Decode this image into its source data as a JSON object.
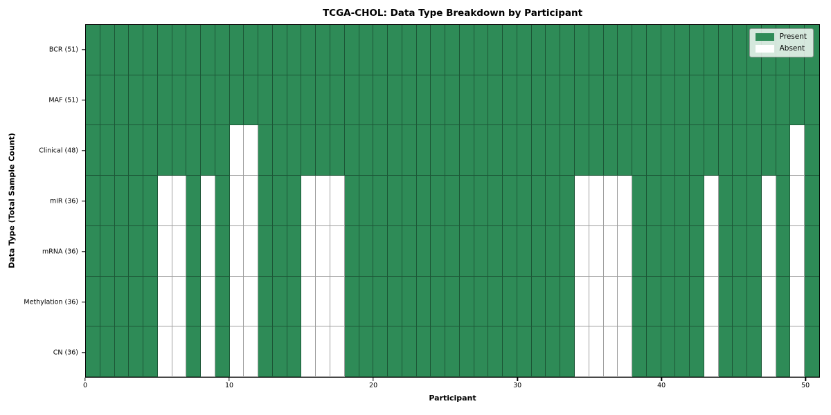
{
  "chart_data": {
    "type": "heatmap",
    "title": "TCGA-CHOL: Data Type Breakdown by Participant",
    "xlabel": "Participant",
    "ylabel": "Data Type (Total Sample Count)",
    "n_participants": 51,
    "x_tick_values": [
      0,
      10,
      20,
      30,
      40,
      50
    ],
    "grid": true,
    "colors": {
      "present": "#2E8B57",
      "absent": "#FFFFFF",
      "cell_border": "rgba(0,0,0,0.38)",
      "spine": "#000000"
    },
    "legend": {
      "position": "upper right",
      "items": [
        {
          "label": "Present",
          "color": "#2E8B57"
        },
        {
          "label": "Absent",
          "color": "#FFFFFF"
        }
      ]
    },
    "rows": [
      {
        "label": "BCR (51)",
        "total": 51,
        "absent_participants": []
      },
      {
        "label": "MAF (51)",
        "total": 51,
        "absent_participants": []
      },
      {
        "label": "Clinical (48)",
        "total": 48,
        "absent_participants": [
          10,
          11,
          49
        ]
      },
      {
        "label": "miR (36)",
        "total": 36,
        "absent_participants": [
          5,
          6,
          8,
          10,
          11,
          15,
          16,
          17,
          34,
          35,
          36,
          37,
          43,
          47,
          49
        ]
      },
      {
        "label": "mRNA (36)",
        "total": 36,
        "absent_participants": [
          5,
          6,
          8,
          10,
          11,
          15,
          16,
          17,
          34,
          35,
          36,
          37,
          43,
          47,
          49
        ]
      },
      {
        "label": "Methylation (36)",
        "total": 36,
        "absent_participants": [
          5,
          6,
          8,
          10,
          11,
          15,
          16,
          17,
          34,
          35,
          36,
          37,
          43,
          47,
          49
        ]
      },
      {
        "label": "CN (36)",
        "total": 36,
        "absent_participants": [
          5,
          6,
          8,
          10,
          11,
          15,
          16,
          17,
          34,
          35,
          36,
          37,
          43,
          47,
          49
        ]
      }
    ]
  }
}
